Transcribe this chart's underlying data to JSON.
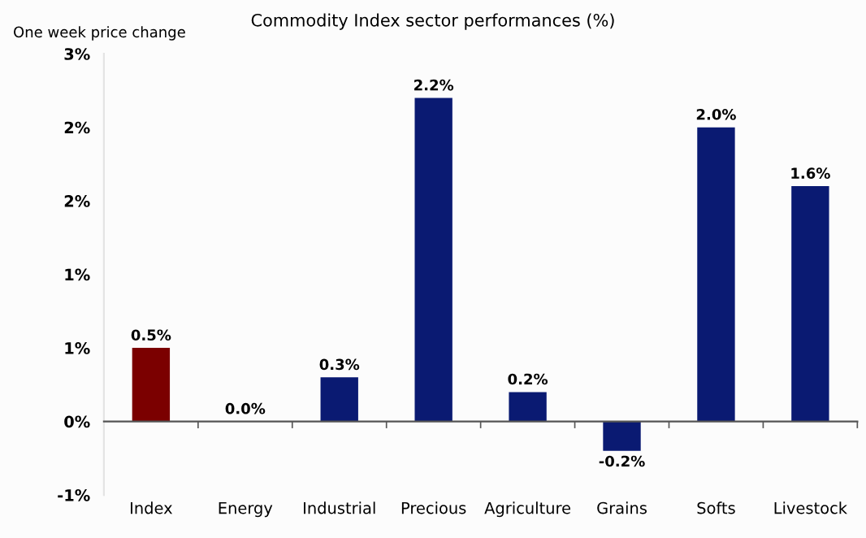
{
  "chart_data": {
    "type": "bar",
    "title": "Commodity Index sector performances (%)",
    "ylabel": "One week price change",
    "categories": [
      "Index",
      "Energy",
      "Industrial",
      "Precious",
      "Agriculture",
      "Grains",
      "Softs",
      "Livestock"
    ],
    "values": [
      0.5,
      0.0,
      0.3,
      2.2,
      0.2,
      -0.2,
      2.0,
      1.6
    ],
    "colors": [
      "#7b0000",
      "#0a1a72",
      "#0a1a72",
      "#0a1a72",
      "#0a1a72",
      "#0a1a72",
      "#0a1a72",
      "#0a1a72"
    ],
    "value_labels": [
      "0.5%",
      "0.0%",
      "0.3%",
      "2.2%",
      "0.2%",
      "-0.2%",
      "2.0%",
      "1.6%"
    ],
    "ylim": [
      -0.5,
      2.5
    ],
    "yticks": [
      {
        "value": -0.5,
        "label": "-1%"
      },
      {
        "value": 0,
        "label": "0%"
      },
      {
        "value": 0.5,
        "label": "1%"
      },
      {
        "value": 1.0,
        "label": "1%"
      },
      {
        "value": 1.5,
        "label": "2%"
      },
      {
        "value": 2.0,
        "label": "2%"
      },
      {
        "value": 2.5,
        "label": "3%"
      }
    ]
  }
}
